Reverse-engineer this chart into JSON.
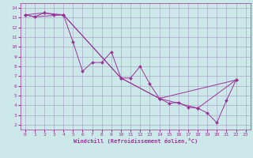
{
  "title": "",
  "xlabel": "Windchill (Refroidissement éolien,°C)",
  "background_color": "#cce8e8",
  "grid_color": "#aaaacc",
  "line_color": "#993399",
  "xlim": [
    -0.5,
    23.5
  ],
  "ylim": [
    1.5,
    14.5
  ],
  "xticks": [
    0,
    1,
    2,
    3,
    4,
    5,
    6,
    7,
    8,
    9,
    10,
    11,
    12,
    13,
    14,
    15,
    16,
    17,
    18,
    19,
    20,
    21,
    22,
    23
  ],
  "yticks": [
    2,
    3,
    4,
    5,
    6,
    7,
    8,
    9,
    10,
    11,
    12,
    13,
    14
  ],
  "series": [
    {
      "x": [
        0,
        1,
        2,
        3,
        4,
        5,
        6,
        7,
        8,
        9,
        10,
        11,
        12,
        13,
        14,
        15,
        16,
        17,
        18,
        19,
        20,
        21,
        22
      ],
      "y": [
        13.3,
        13.1,
        13.5,
        13.3,
        13.3,
        10.5,
        7.5,
        8.4,
        8.4,
        9.5,
        6.8,
        6.8,
        8.0,
        6.2,
        4.7,
        4.2,
        4.3,
        3.8,
        3.7,
        3.2,
        2.2,
        4.5,
        6.6
      ]
    },
    {
      "x": [
        0,
        1,
        4,
        10,
        14,
        18,
        22
      ],
      "y": [
        13.3,
        13.1,
        13.3,
        6.8,
        4.7,
        3.7,
        6.6
      ]
    },
    {
      "x": [
        0,
        2,
        4,
        10,
        14,
        22
      ],
      "y": [
        13.3,
        13.5,
        13.3,
        6.8,
        4.7,
        6.6
      ]
    }
  ]
}
